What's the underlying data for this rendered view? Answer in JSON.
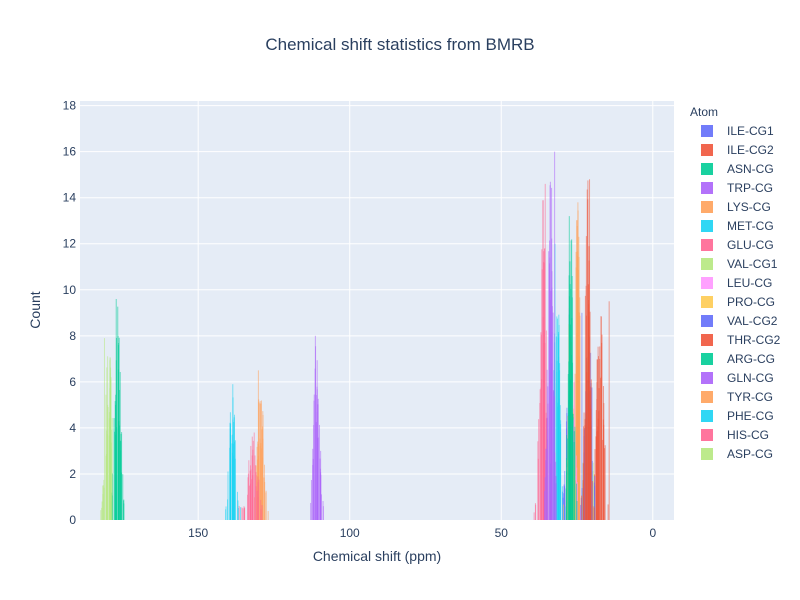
{
  "chart_data": {
    "type": "histogram",
    "title": "Chemical shift statistics from BMRB",
    "xlabel": "Chemical shift (ppm)",
    "ylabel": "Count",
    "x_reversed": true,
    "xlim": [
      189,
      -7
    ],
    "ylim": [
      0,
      18.2
    ],
    "xticks": [
      150,
      100,
      50,
      0
    ],
    "yticks": [
      0,
      2,
      4,
      6,
      8,
      10,
      12,
      14,
      16,
      18
    ],
    "grid": true,
    "bar_opacity": 0.55,
    "legend": {
      "title": "Atom",
      "placement": "right"
    },
    "series": [
      {
        "name": "ILE-CG1",
        "color": "#636efa",
        "center": 27.5,
        "spread": 1.3,
        "peak": 6.5,
        "n": 40
      },
      {
        "name": "ILE-CG2",
        "color": "#ef553b",
        "center": 17.5,
        "spread": 1.2,
        "peak": 9.5,
        "n": 36
      },
      {
        "name": "ASN-CG",
        "color": "#00cc96",
        "center": 176.6,
        "spread": 1.0,
        "peak": 9.6,
        "n": 34
      },
      {
        "name": "TRP-CG",
        "color": "#ab63fa",
        "center": 111.0,
        "spread": 1.0,
        "peak": 8.0,
        "n": 30
      },
      {
        "name": "LYS-CG",
        "color": "#ffa15a",
        "center": 24.9,
        "spread": 1.0,
        "peak": 13.8,
        "n": 34
      },
      {
        "name": "MET-CG",
        "color": "#19d3f3",
        "center": 31.9,
        "spread": 1.2,
        "peak": 12.0,
        "n": 34
      },
      {
        "name": "GLU-CG",
        "color": "#ff6692",
        "center": 36.2,
        "spread": 1.1,
        "peak": 14.6,
        "n": 34
      },
      {
        "name": "VAL-CG1",
        "color": "#b6e880",
        "center": 21.4,
        "spread": 1.1,
        "peak": 8.3,
        "n": 34
      },
      {
        "name": "LEU-CG",
        "color": "#ff97ff",
        "center": 26.8,
        "spread": 1.0,
        "peak": 9.2,
        "n": 34
      },
      {
        "name": "PRO-CG",
        "color": "#fecb52",
        "center": 27.2,
        "spread": 0.9,
        "peak": 8.5,
        "n": 30
      },
      {
        "name": "VAL-CG2",
        "color": "#636efa",
        "center": 21.2,
        "spread": 1.2,
        "peak": 9.0,
        "n": 34
      },
      {
        "name": "THR-CG2",
        "color": "#ef553b",
        "center": 21.5,
        "spread": 0.9,
        "peak": 14.8,
        "n": 34
      },
      {
        "name": "ARG-CG",
        "color": "#00cc96",
        "center": 27.1,
        "spread": 0.9,
        "peak": 13.2,
        "n": 34
      },
      {
        "name": "GLN-CG",
        "color": "#ab63fa",
        "center": 33.8,
        "spread": 0.9,
        "peak": 16.0,
        "n": 34
      },
      {
        "name": "TYR-CG",
        "color": "#ffa15a",
        "center": 129.5,
        "spread": 1.1,
        "peak": 6.5,
        "n": 32
      },
      {
        "name": "PHE-CG",
        "color": "#19d3f3",
        "center": 138.8,
        "spread": 1.0,
        "peak": 5.9,
        "n": 32
      },
      {
        "name": "HIS-CG",
        "color": "#ff6692",
        "center": 132.0,
        "spread": 1.6,
        "peak": 3.8,
        "n": 36
      },
      {
        "name": "ASP-CG",
        "color": "#b6e880",
        "center": 179.6,
        "spread": 1.1,
        "peak": 7.9,
        "n": 34
      }
    ]
  }
}
